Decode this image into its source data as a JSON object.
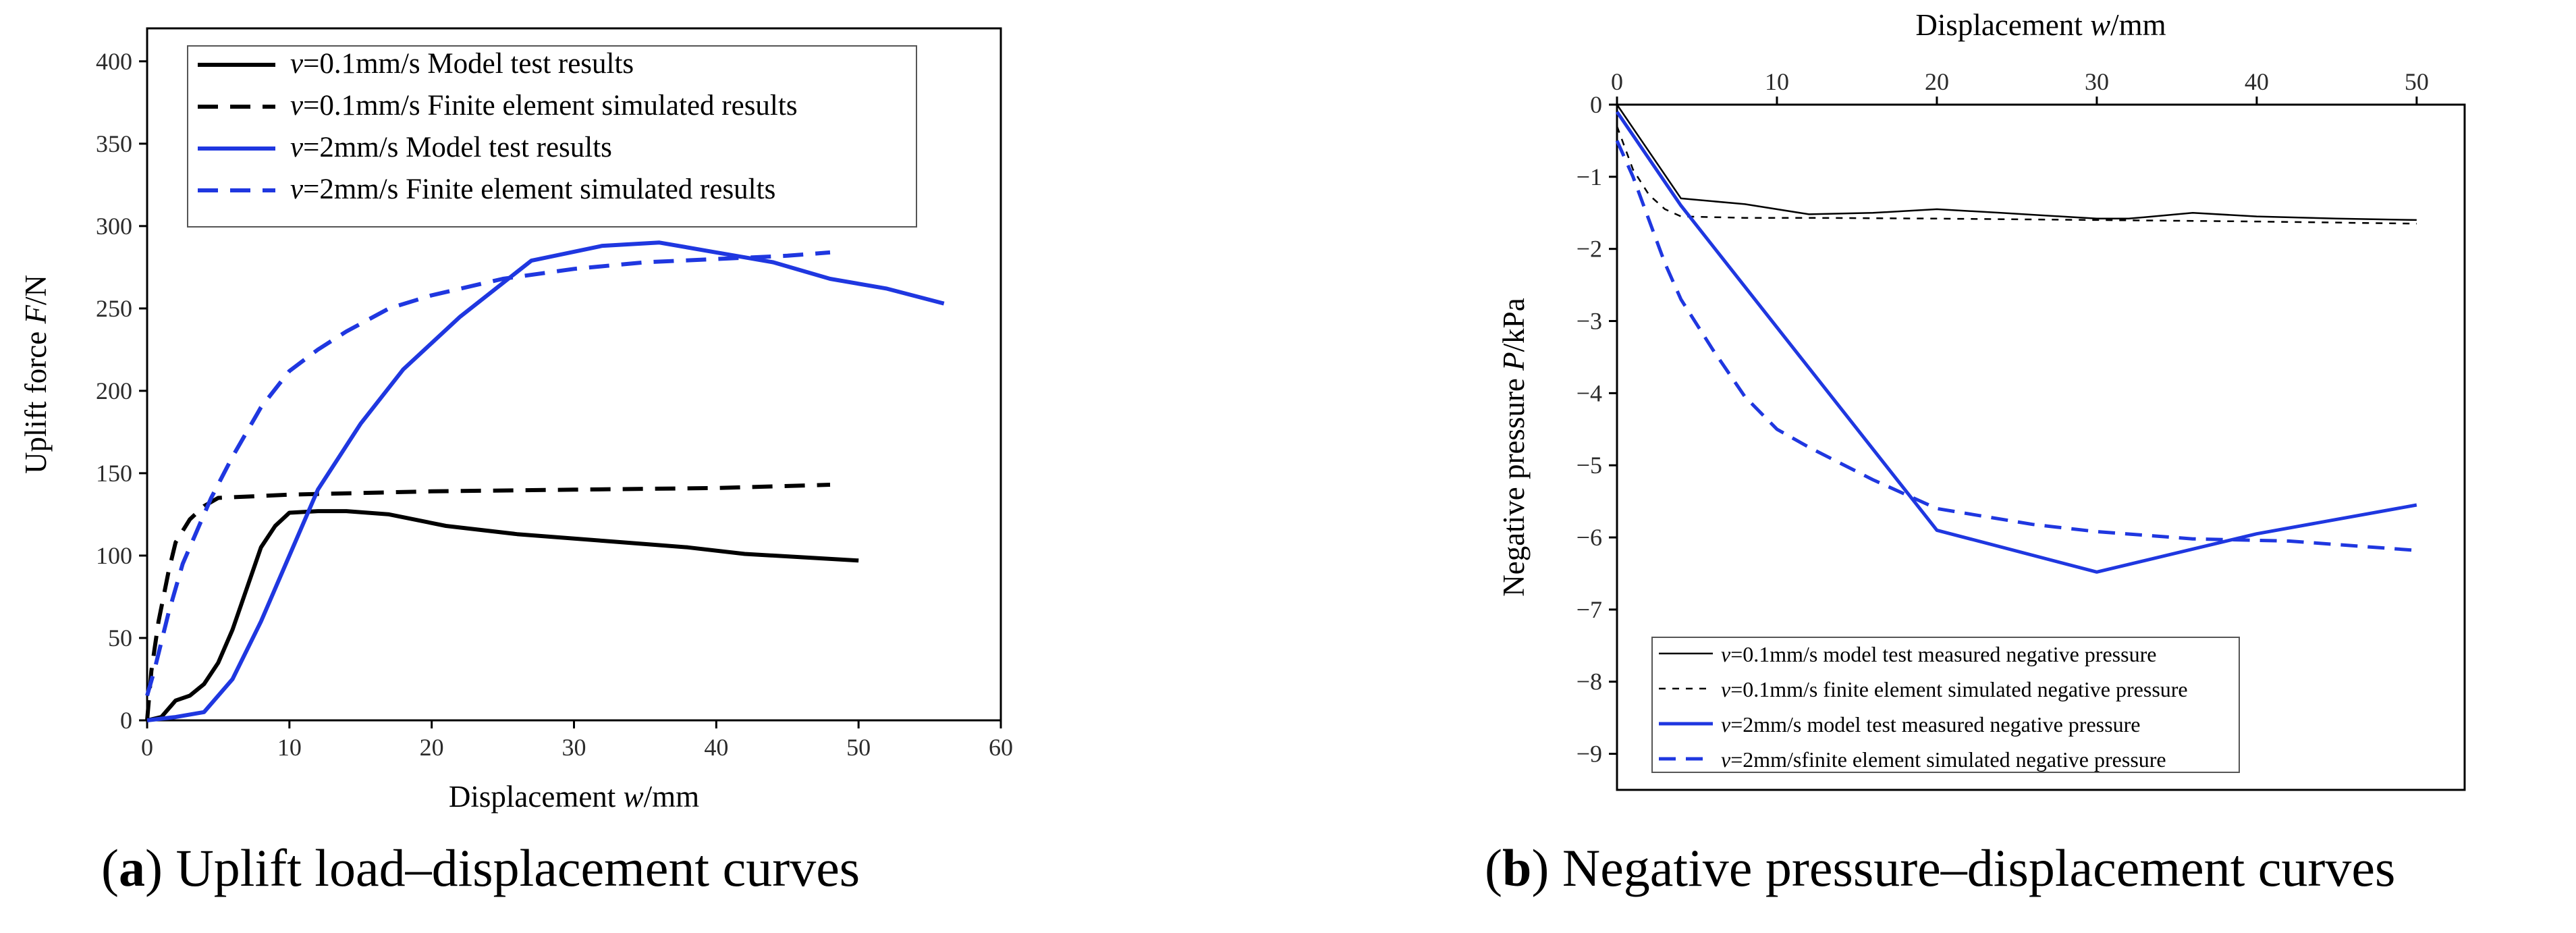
{
  "chart_data": [
    {
      "id": "a",
      "type": "line",
      "caption": {
        "letter": "a",
        "text": "Uplift load–displacement curves"
      },
      "xlabel": {
        "prefix": "Displacement ",
        "var": "w",
        "suffix": "/mm"
      },
      "ylabel": {
        "prefix": "Uplift force ",
        "var": "F",
        "suffix": "/N"
      },
      "xlim": [
        0,
        60
      ],
      "ylim": [
        0,
        420
      ],
      "xticks": [
        0,
        10,
        20,
        30,
        40,
        50,
        60
      ],
      "yticks": [
        0,
        50,
        100,
        150,
        200,
        250,
        300,
        350,
        400
      ],
      "legend_position": "top-left",
      "series": [
        {
          "name": "=0.1mm/s Model test results",
          "var": "v",
          "color": "#000000",
          "dash": "solid",
          "points": [
            [
              0,
              0
            ],
            [
              1,
              2
            ],
            [
              2,
              12
            ],
            [
              3,
              15
            ],
            [
              4,
              22
            ],
            [
              5,
              35
            ],
            [
              6,
              55
            ],
            [
              7,
              80
            ],
            [
              8,
              105
            ],
            [
              9,
              118
            ],
            [
              10,
              126
            ],
            [
              12,
              127
            ],
            [
              14,
              127
            ],
            [
              17,
              125
            ],
            [
              21,
              118
            ],
            [
              26,
              113
            ],
            [
              32,
              109
            ],
            [
              35,
              107
            ],
            [
              38,
              105
            ],
            [
              42,
              101
            ],
            [
              46,
              99
            ],
            [
              50,
              97
            ]
          ]
        },
        {
          "name": "=0.1mm/s Finite element simulated results",
          "var": "v",
          "color": "#000000",
          "dash": "dashed",
          "points": [
            [
              0,
              0
            ],
            [
              0.3,
              30
            ],
            [
              0.8,
              60
            ],
            [
              1.5,
              90
            ],
            [
              2,
              108
            ],
            [
              3,
              122
            ],
            [
              4,
              130
            ],
            [
              5,
              135
            ],
            [
              10,
              137
            ],
            [
              20,
              139
            ],
            [
              30,
              140
            ],
            [
              40,
              141
            ],
            [
              48,
              143
            ]
          ]
        },
        {
          "name": "=2mm/s Model test results",
          "var": "v",
          "color": "#1f37e0",
          "dash": "solid",
          "points": [
            [
              0,
              0
            ],
            [
              2,
              2
            ],
            [
              4,
              5
            ],
            [
              6,
              25
            ],
            [
              8,
              60
            ],
            [
              10,
              100
            ],
            [
              12,
              140
            ],
            [
              15,
              180
            ],
            [
              18,
              213
            ],
            [
              22,
              245
            ],
            [
              27,
              279
            ],
            [
              32,
              288
            ],
            [
              36,
              290
            ],
            [
              40,
              284
            ],
            [
              44,
              278
            ],
            [
              48,
              268
            ],
            [
              52,
              262
            ],
            [
              56,
              253
            ]
          ]
        },
        {
          "name": "=2mm/s Finite element simulated results",
          "var": "v",
          "color": "#1f37e0",
          "dash": "dashed",
          "points": [
            [
              0,
              15
            ],
            [
              0.5,
              30
            ],
            [
              1.5,
              65
            ],
            [
              2.5,
              95
            ],
            [
              3.5,
              115
            ],
            [
              4.5,
              135
            ],
            [
              6,
              160
            ],
            [
              8,
              190
            ],
            [
              10,
              212
            ],
            [
              12,
              225
            ],
            [
              14,
              236
            ],
            [
              17,
              250
            ],
            [
              20,
              258
            ],
            [
              25,
              268
            ],
            [
              30,
              274
            ],
            [
              35,
              278
            ],
            [
              40,
              280
            ],
            [
              45,
              282
            ],
            [
              48,
              284
            ]
          ]
        }
      ]
    },
    {
      "id": "b",
      "type": "line",
      "caption": {
        "letter": "b",
        "text": "Negative pressure–displacement curves"
      },
      "xlabel": {
        "prefix": "Displacement ",
        "var": "w",
        "suffix": "/mm"
      },
      "ylabel": {
        "prefix": "Negative pressure ",
        "var": "P",
        "suffix": "/kPa"
      },
      "xaxis_position": "top",
      "xlim": [
        0,
        53
      ],
      "ylim": [
        -9.5,
        0
      ],
      "xticks": [
        0,
        10,
        20,
        30,
        40,
        50
      ],
      "yticks": [
        0,
        -1,
        -2,
        -3,
        -4,
        -5,
        -6,
        -7,
        -8,
        -9
      ],
      "ytick_labels": [
        "0",
        "−1",
        "−2",
        "−3",
        "−4",
        "−5",
        "−6",
        "−7",
        "−8",
        "−9"
      ],
      "legend_position": "bottom-left",
      "series": [
        {
          "name": "=0.1mm/s model test measured negative pressure",
          "var": "v",
          "color": "#000000",
          "dash": "solid",
          "width": 2.5,
          "points": [
            [
              0,
              0
            ],
            [
              4,
              -1.3
            ],
            [
              8,
              -1.38
            ],
            [
              12,
              -1.52
            ],
            [
              16,
              -1.5
            ],
            [
              20,
              -1.45
            ],
            [
              24,
              -1.5
            ],
            [
              30,
              -1.58
            ],
            [
              32,
              -1.58
            ],
            [
              36,
              -1.5
            ],
            [
              40,
              -1.55
            ],
            [
              45,
              -1.58
            ],
            [
              50,
              -1.6
            ]
          ]
        },
        {
          "name": "=0.1mm/s finite element simulated negative pressure",
          "var": "v",
          "color": "#000000",
          "dash": "shortdash",
          "width": 2.5,
          "points": [
            [
              0,
              -0.3
            ],
            [
              1,
              -0.9
            ],
            [
              2,
              -1.25
            ],
            [
              3,
              -1.45
            ],
            [
              4,
              -1.55
            ],
            [
              8,
              -1.57
            ],
            [
              12,
              -1.57
            ],
            [
              20,
              -1.58
            ],
            [
              30,
              -1.6
            ],
            [
              40,
              -1.62
            ],
            [
              50,
              -1.65
            ]
          ]
        },
        {
          "name": "=2mm/s model test measured negative pressure",
          "var": "v",
          "color": "#1f37e0",
          "dash": "solid",
          "width": 5,
          "points": [
            [
              0,
              -0.1
            ],
            [
              2,
              -0.75
            ],
            [
              4,
              -1.4
            ],
            [
              20,
              -5.9
            ],
            [
              30,
              -6.48
            ],
            [
              40,
              -5.95
            ],
            [
              50,
              -5.55
            ]
          ]
        },
        {
          "name": "=2mm/sfinite element simulated negative pressure",
          "var": "v",
          "color": "#1f37e0",
          "dash": "dashed",
          "width": 5,
          "points": [
            [
              0,
              -0.5
            ],
            [
              1,
              -1.0
            ],
            [
              2,
              -1.6
            ],
            [
              3,
              -2.2
            ],
            [
              4,
              -2.7
            ],
            [
              6,
              -3.4
            ],
            [
              8,
              -4.05
            ],
            [
              10,
              -4.5
            ],
            [
              12,
              -4.75
            ],
            [
              16,
              -5.2
            ],
            [
              20,
              -5.6
            ],
            [
              26,
              -5.82
            ],
            [
              30,
              -5.92
            ],
            [
              36,
              -6.02
            ],
            [
              42,
              -6.05
            ],
            [
              50,
              -6.18
            ]
          ]
        }
      ]
    }
  ]
}
